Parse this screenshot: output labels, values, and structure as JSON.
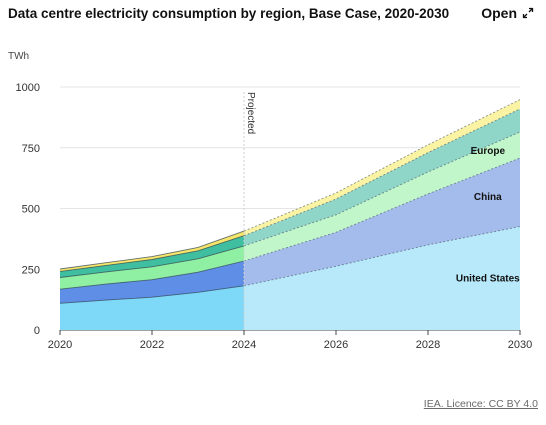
{
  "header": {
    "title": "Data centre electricity consumption by region, Base Case, 2020-2030",
    "open_label": "Open"
  },
  "footer": {
    "source": "IEA. Licence: CC BY 4.0"
  },
  "chart_data": {
    "type": "area",
    "stacked": true,
    "ylabel": "TWh",
    "ylim": [
      0,
      1000
    ],
    "yticks": [
      0,
      250,
      500,
      750,
      1000
    ],
    "xlim": [
      2020,
      2030
    ],
    "xticks": [
      2020,
      2022,
      2024,
      2026,
      2028,
      2030
    ],
    "projection_start": 2024,
    "projection_label": "Projected",
    "x": [
      2020,
      2021,
      2022,
      2023,
      2024,
      2026,
      2028,
      2030
    ],
    "series": [
      {
        "name": "United States",
        "labeled": true,
        "color": "#7ed8f7",
        "proj_color": "#b7e9fb",
        "values": [
          110,
          123,
          135,
          155,
          182,
          262,
          350,
          426
        ]
      },
      {
        "name": "China",
        "labeled": true,
        "color": "#5f8ee6",
        "proj_color": "#a4bcec",
        "values": [
          58,
          66,
          72,
          83,
          102,
          140,
          210,
          282
        ]
      },
      {
        "name": "Europe",
        "labeled": true,
        "color": "#8ff0a4",
        "proj_color": "#c1f5ca",
        "values": [
          48,
          50,
          53,
          55,
          62,
          72,
          90,
          107
        ]
      },
      {
        "name": "",
        "labeled": false,
        "color": "#3fbf9f",
        "proj_color": "#8fd5c8",
        "values": [
          25,
          27,
          30,
          33,
          42,
          65,
          80,
          95
        ]
      },
      {
        "name": "",
        "labeled": false,
        "color": "#f5e66b",
        "proj_color": "#fbf3a4",
        "values": [
          10,
          11,
          12,
          14,
          19,
          25,
          32,
          38
        ]
      }
    ],
    "labels": [
      {
        "text": "United States",
        "x": 2029.3,
        "y": 200
      },
      {
        "text": "China",
        "x": 2029.3,
        "y": 535
      },
      {
        "text": "Europe",
        "x": 2029.3,
        "y": 725
      }
    ]
  }
}
